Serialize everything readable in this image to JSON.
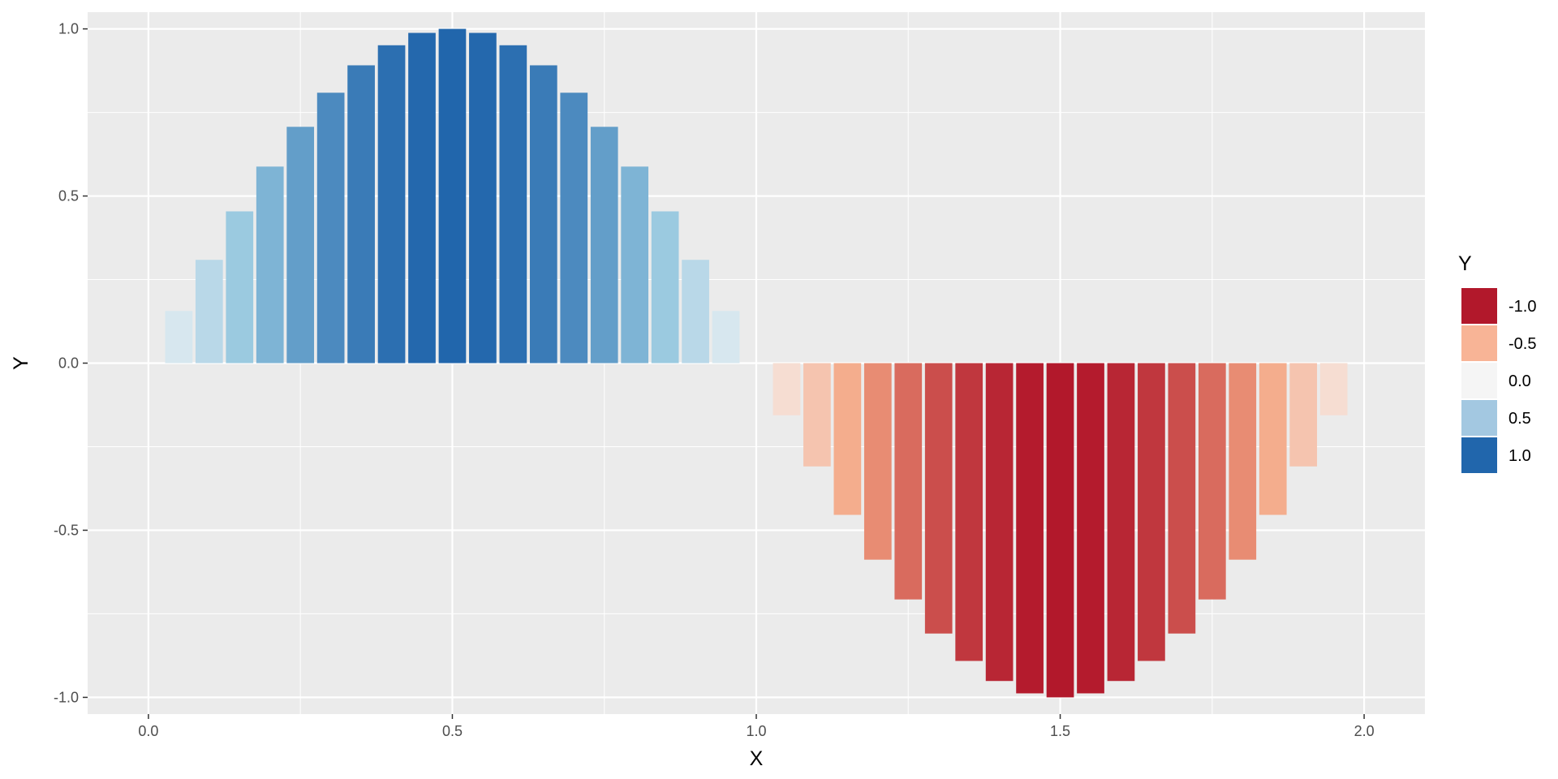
{
  "chart_data": {
    "type": "bar",
    "xlabel": "X",
    "ylabel": "Y",
    "xlim": [
      -0.1,
      2.1
    ],
    "ylim": [
      -1.05,
      1.05
    ],
    "x_ticks": [
      0.0,
      0.5,
      1.0,
      1.5,
      2.0
    ],
    "x_tick_labels": [
      "0.0",
      "0.5",
      "1.0",
      "1.5",
      "2.0"
    ],
    "y_ticks": [
      -1.0,
      -0.5,
      0.0,
      0.5,
      1.0
    ],
    "y_tick_labels": [
      "-1.0",
      "-0.5",
      "0.0",
      "0.5",
      "1.0"
    ],
    "grid": true,
    "background_color": "#EBEBEB",
    "grid_color": "#FFFFFF",
    "bar_width": 0.045,
    "x": [
      0.05,
      0.1,
      0.15,
      0.2,
      0.25,
      0.3,
      0.35,
      0.4,
      0.45,
      0.5,
      0.55,
      0.6,
      0.65,
      0.7,
      0.75,
      0.8,
      0.85,
      0.9,
      0.95,
      1.0,
      1.05,
      1.1,
      1.15,
      1.2,
      1.25,
      1.3,
      1.35,
      1.4,
      1.45,
      1.5,
      1.55,
      1.6,
      1.65,
      1.7,
      1.75,
      1.8,
      1.85,
      1.9,
      1.95
    ],
    "values": [
      0.156,
      0.309,
      0.454,
      0.588,
      0.707,
      0.809,
      0.891,
      0.951,
      0.988,
      1.0,
      0.988,
      0.951,
      0.891,
      0.809,
      0.707,
      0.588,
      0.454,
      0.309,
      0.156,
      0.0,
      -0.156,
      -0.309,
      -0.454,
      -0.588,
      -0.707,
      -0.809,
      -0.891,
      -0.951,
      -0.988,
      -1.0,
      -0.988,
      -0.951,
      -0.891,
      -0.809,
      -0.707,
      -0.588,
      -0.454,
      -0.309,
      -0.156
    ],
    "fill_scale": {
      "palette": "RdBu",
      "stops": [
        {
          "value": -1.0,
          "color": "#B2182B"
        },
        {
          "value": -0.5,
          "color": "#F4A582"
        },
        {
          "value": 0.0,
          "color": "#F7F7F7"
        },
        {
          "value": 0.5,
          "color": "#92C5DE"
        },
        {
          "value": 1.0,
          "color": "#2166AC"
        }
      ]
    },
    "legend": {
      "title": "Y",
      "position": "right",
      "entries": [
        {
          "label": "-1.0",
          "color": "#B2182B"
        },
        {
          "label": "-0.5",
          "color": "#F8B496"
        },
        {
          "label": "0.0",
          "color": "#F5F5F5"
        },
        {
          "label": "0.5",
          "color": "#A3C8E1"
        },
        {
          "label": "1.0",
          "color": "#2166AC"
        }
      ]
    }
  }
}
